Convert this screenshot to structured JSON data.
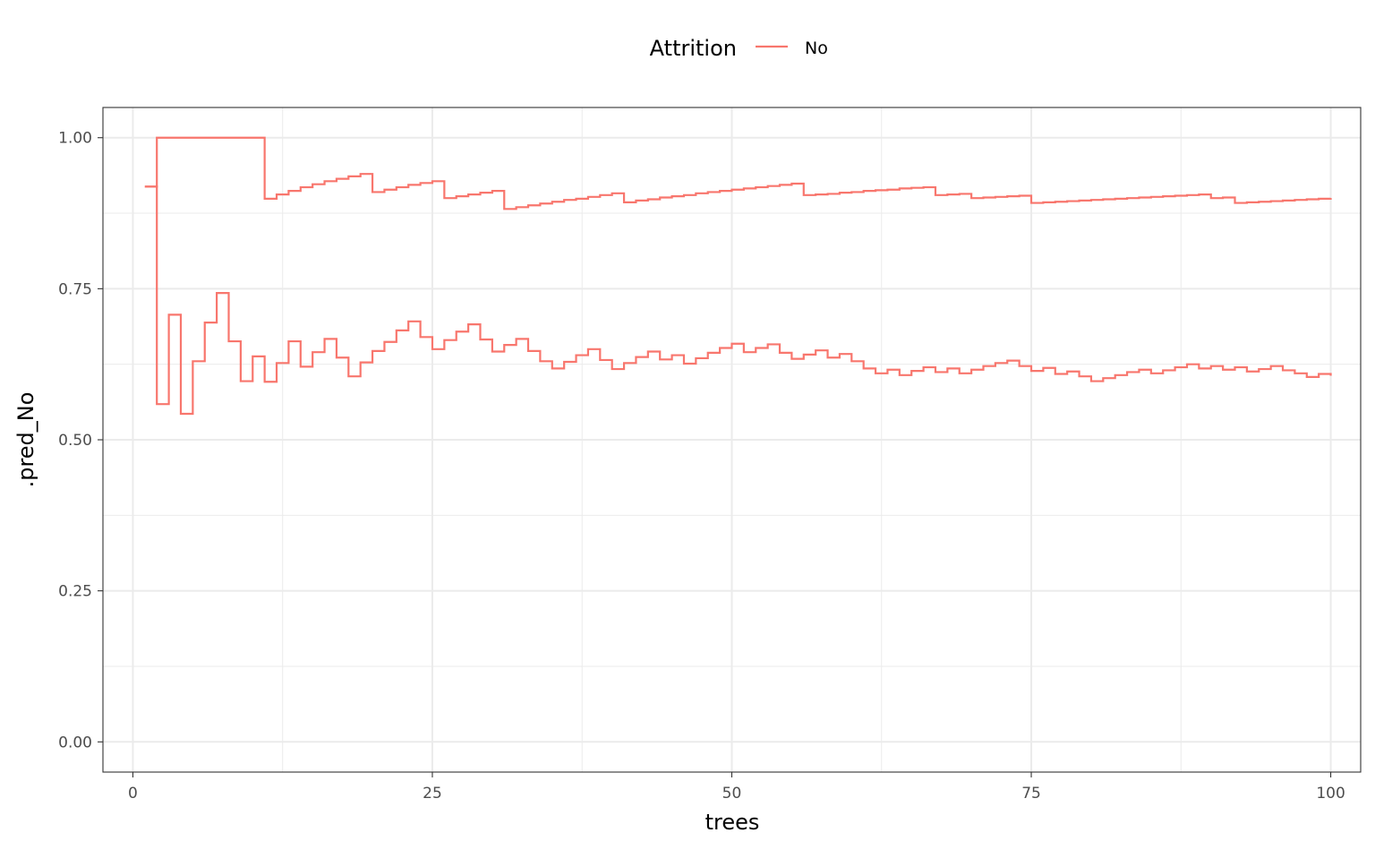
{
  "chart_data": {
    "type": "line",
    "line_style": "step",
    "xlabel": "trees",
    "ylabel": ".pred_No",
    "xlim": [
      -2.5,
      102.5
    ],
    "ylim": [
      -0.05,
      1.05
    ],
    "x_ticks": [
      0,
      25,
      50,
      75,
      100
    ],
    "x_tick_labels": [
      "0",
      "25",
      "50",
      "75",
      "100"
    ],
    "y_ticks": [
      0,
      0.25,
      0.5,
      0.75,
      1
    ],
    "y_tick_labels": [
      "0.00",
      "0.25",
      "0.50",
      "0.75",
      "1.00"
    ],
    "grid": true,
    "legend": {
      "position": "top",
      "title": "Attrition",
      "entries": [
        "No"
      ]
    },
    "colors": {
      "No": "#F8766D",
      "grid": "#EBEBEB",
      "panel_border": "#333333"
    },
    "series": [
      {
        "name": "No",
        "x": [
          1,
          2,
          3,
          4,
          5,
          6,
          7,
          8,
          9,
          10,
          11,
          12,
          13,
          14,
          15,
          16,
          17,
          18,
          19,
          20,
          21,
          22,
          23,
          24,
          25,
          26,
          27,
          28,
          29,
          30,
          31,
          32,
          33,
          34,
          35,
          36,
          37,
          38,
          39,
          40,
          41,
          42,
          43,
          44,
          45,
          46,
          47,
          48,
          49,
          50,
          51,
          52,
          53,
          54,
          55,
          56,
          57,
          58,
          59,
          60,
          61,
          62,
          63,
          64,
          65,
          66,
          67,
          68,
          69,
          70,
          71,
          72,
          73,
          74,
          75,
          76,
          77,
          78,
          79,
          80,
          81,
          82,
          83,
          84,
          85,
          86,
          87,
          88,
          89,
          90,
          91,
          92,
          93,
          94,
          95,
          96,
          97,
          98,
          99,
          100
        ],
        "values": [
          0.919,
          1.0,
          1.0,
          1.0,
          1.0,
          1.0,
          1.0,
          1.0,
          1.0,
          1.0,
          0.899,
          0.906,
          0.912,
          0.918,
          0.923,
          0.928,
          0.932,
          0.936,
          0.94,
          0.91,
          0.914,
          0.918,
          0.922,
          0.925,
          0.928,
          0.9,
          0.903,
          0.906,
          0.909,
          0.912,
          0.882,
          0.885,
          0.888,
          0.891,
          0.894,
          0.897,
          0.899,
          0.902,
          0.905,
          0.908,
          0.893,
          0.896,
          0.898,
          0.901,
          0.903,
          0.905,
          0.908,
          0.91,
          0.912,
          0.914,
          0.916,
          0.918,
          0.92,
          0.922,
          0.924,
          0.905,
          0.906,
          0.907,
          0.909,
          0.91,
          0.912,
          0.913,
          0.914,
          0.916,
          0.917,
          0.918,
          0.905,
          0.906,
          0.907,
          0.9,
          0.901,
          0.902,
          0.903,
          0.904,
          0.892,
          0.893,
          0.894,
          0.895,
          0.896,
          0.897,
          0.898,
          0.899,
          0.9,
          0.901,
          0.902,
          0.903,
          0.904,
          0.905,
          0.906,
          0.9,
          0.901,
          0.892,
          0.893,
          0.894,
          0.895,
          0.896,
          0.897,
          0.898,
          0.899,
          0.9
        ]
      },
      {
        "name": "No",
        "x": [
          1,
          2,
          3,
          4,
          5,
          6,
          7,
          8,
          9,
          10,
          11,
          12,
          13,
          14,
          15,
          16,
          17,
          18,
          19,
          20,
          21,
          22,
          23,
          24,
          25,
          26,
          27,
          28,
          29,
          30,
          31,
          32,
          33,
          34,
          35,
          36,
          37,
          38,
          39,
          40,
          41,
          42,
          43,
          44,
          45,
          46,
          47,
          48,
          49,
          50,
          51,
          52,
          53,
          54,
          55,
          56,
          57,
          58,
          59,
          60,
          61,
          62,
          63,
          64,
          65,
          66,
          67,
          68,
          69,
          70,
          71,
          72,
          73,
          74,
          75,
          76,
          77,
          78,
          79,
          80,
          81,
          82,
          83,
          84,
          85,
          86,
          87,
          88,
          89,
          90,
          91,
          92,
          93,
          94,
          95,
          96,
          97,
          98,
          99,
          100
        ],
        "values": [
          0.919,
          0.559,
          0.707,
          0.543,
          0.63,
          0.694,
          0.743,
          0.663,
          0.597,
          0.638,
          0.596,
          0.627,
          0.663,
          0.621,
          0.645,
          0.667,
          0.636,
          0.605,
          0.628,
          0.647,
          0.662,
          0.681,
          0.696,
          0.67,
          0.65,
          0.665,
          0.679,
          0.691,
          0.666,
          0.646,
          0.657,
          0.667,
          0.647,
          0.63,
          0.618,
          0.629,
          0.64,
          0.65,
          0.632,
          0.617,
          0.627,
          0.637,
          0.646,
          0.633,
          0.64,
          0.626,
          0.635,
          0.644,
          0.652,
          0.659,
          0.645,
          0.652,
          0.658,
          0.644,
          0.634,
          0.641,
          0.648,
          0.636,
          0.642,
          0.63,
          0.618,
          0.61,
          0.616,
          0.607,
          0.614,
          0.62,
          0.612,
          0.618,
          0.61,
          0.616,
          0.622,
          0.627,
          0.631,
          0.622,
          0.614,
          0.619,
          0.609,
          0.613,
          0.605,
          0.597,
          0.602,
          0.607,
          0.612,
          0.616,
          0.61,
          0.615,
          0.62,
          0.625,
          0.618,
          0.622,
          0.616,
          0.62,
          0.613,
          0.617,
          0.622,
          0.615,
          0.61,
          0.604,
          0.609,
          0.606
        ]
      }
    ]
  }
}
